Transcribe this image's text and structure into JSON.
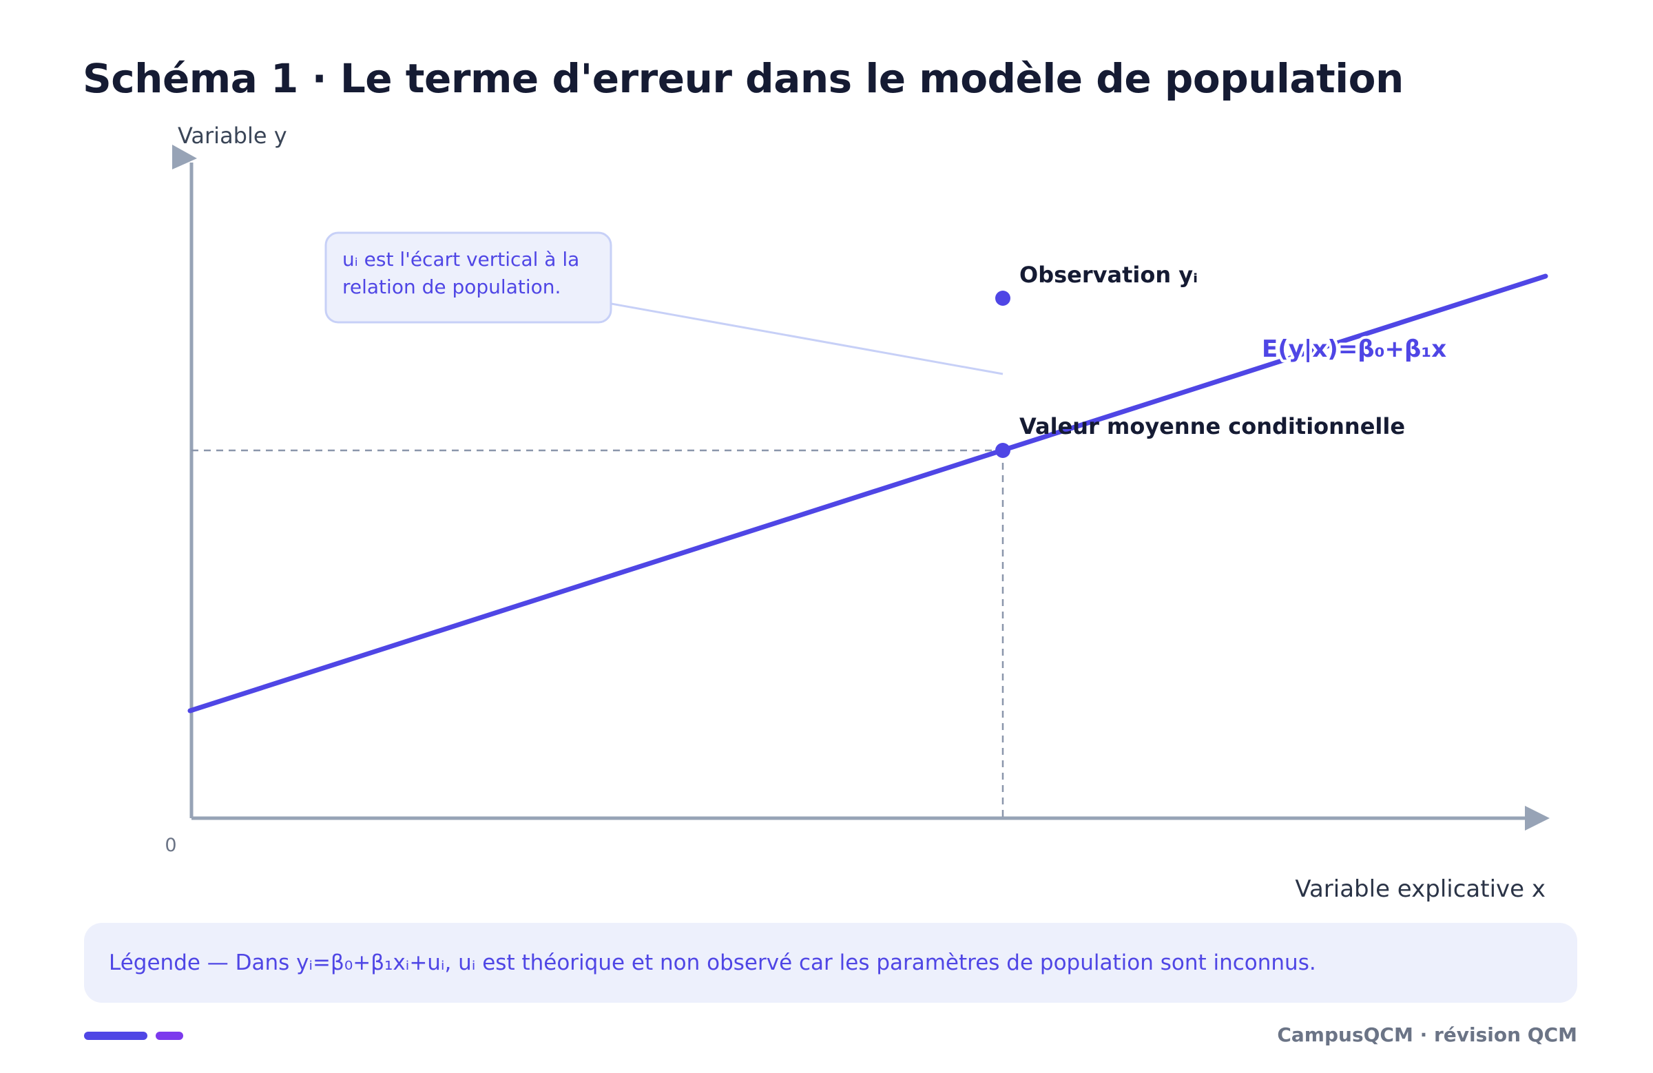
{
  "title": "Schéma 1 · Le terme d'erreur dans le modèle de population",
  "axes": {
    "y_label": "Variable y",
    "x_label": "Variable explicative x",
    "origin_label": "0"
  },
  "annotation": {
    "line1": "uᵢ est l'écart vertical à la",
    "line2": "relation de population."
  },
  "labels": {
    "observation": "Observation yᵢ",
    "conditional_mean": "Valeur moyenne conditionnelle",
    "regression": "E(y|x)=β₀+β₁x"
  },
  "legend": "Légende — Dans yᵢ=β₀+β₁xᵢ+uᵢ, uᵢ est théorique et non observé car les paramètres de population sont inconnus.",
  "footer": "CampusQCM · révision QCM",
  "colors": {
    "accent": "#4f46e5",
    "accent_secondary": "#7c3aed",
    "axis": "#97a3b6",
    "text_dark": "#151b33",
    "callout_bg": "#edf0fc",
    "callout_border": "#c7d0f7"
  }
}
